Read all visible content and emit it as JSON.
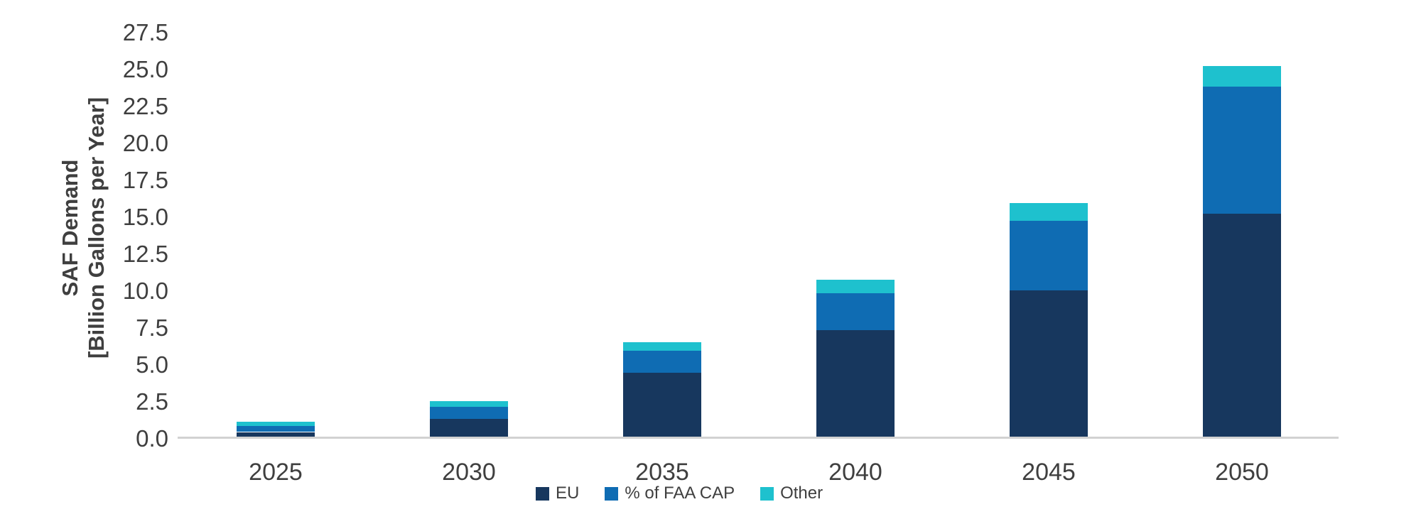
{
  "chart_data": {
    "type": "bar",
    "stacked": true,
    "title": "",
    "ylabel_line1": "SAF Demand",
    "ylabel_line2": "[Billion Gallons per Year]",
    "xlabel": "",
    "categories": [
      "2025",
      "2030",
      "2035",
      "2040",
      "2045",
      "2050"
    ],
    "series": [
      {
        "name": "EU",
        "color": "#17375E",
        "values": [
          0.4,
          1.3,
          4.4,
          7.3,
          10.0,
          15.2
        ]
      },
      {
        "name": "% of FAA CAP",
        "color": "#0F6CB3",
        "values": [
          0.4,
          0.8,
          1.5,
          2.5,
          4.7,
          8.6
        ]
      },
      {
        "name": "Other",
        "color": "#1EC1CE",
        "values": [
          0.3,
          0.4,
          0.6,
          0.9,
          1.2,
          1.4
        ]
      }
    ],
    "totals": [
      1.1,
      2.5,
      6.5,
      10.7,
      15.9,
      25.2
    ],
    "ylim": [
      0,
      27.5
    ],
    "y_tick_step": 2.5,
    "y_ticks": [
      "0.0",
      "2.5",
      "5.0",
      "7.5",
      "10.0",
      "12.5",
      "15.0",
      "17.5",
      "20.0",
      "22.5",
      "25.0",
      "27.5"
    ],
    "grid": false,
    "legend_position": "bottom",
    "axis_color": "#d2d2d2",
    "text_color": "#3f3f3f",
    "background": "#ffffff"
  }
}
